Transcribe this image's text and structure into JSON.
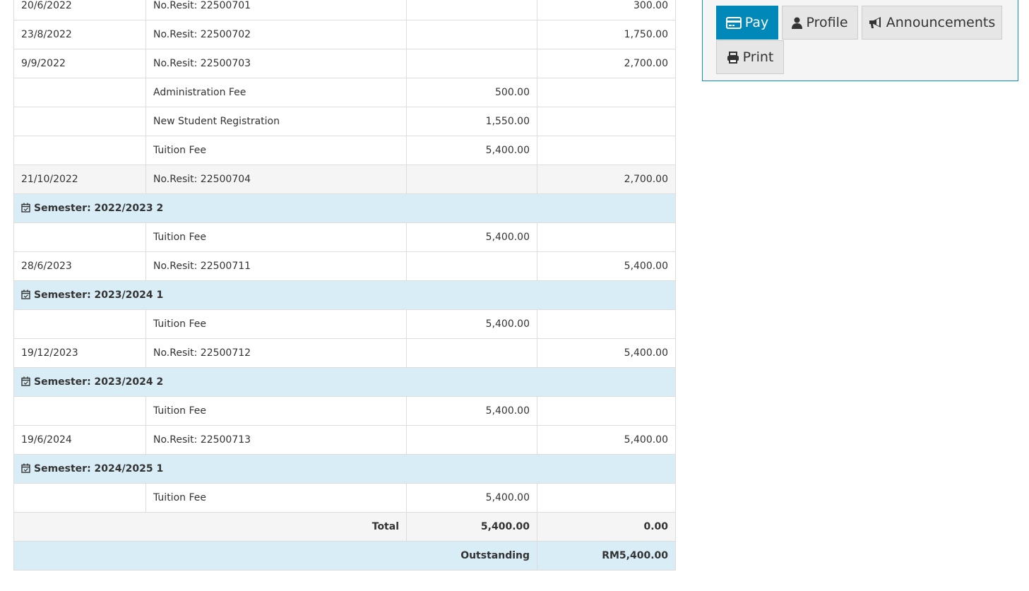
{
  "rows": [
    {
      "type": "row",
      "date": "20/6/2022",
      "desc": "No.Resit: 22500701",
      "debit": "",
      "credit": "300.00"
    },
    {
      "type": "row",
      "date": "23/8/2022",
      "desc": "No.Resit: 22500702",
      "debit": "",
      "credit": "1,750.00"
    },
    {
      "type": "row",
      "date": "9/9/2022",
      "desc": "No.Resit: 22500703",
      "debit": "",
      "credit": "2,700.00"
    },
    {
      "type": "row",
      "date": "",
      "desc": "Administration Fee",
      "debit": "500.00",
      "credit": ""
    },
    {
      "type": "row",
      "date": "",
      "desc": "New Student Registration",
      "debit": "1,550.00",
      "credit": ""
    },
    {
      "type": "row",
      "date": "",
      "desc": "Tuition Fee",
      "debit": "5,400.00",
      "credit": ""
    },
    {
      "type": "alt",
      "date": "21/10/2022",
      "desc": "No.Resit: 22500704",
      "debit": "",
      "credit": "2,700.00"
    },
    {
      "type": "sem",
      "label": "Semester: 2022/2023 2"
    },
    {
      "type": "row",
      "date": "",
      "desc": "Tuition Fee",
      "debit": "5,400.00",
      "credit": ""
    },
    {
      "type": "row",
      "date": "28/6/2023",
      "desc": "No.Resit: 22500711",
      "debit": "",
      "credit": "5,400.00"
    },
    {
      "type": "sem",
      "label": "Semester: 2023/2024 1"
    },
    {
      "type": "row",
      "date": "",
      "desc": "Tuition Fee",
      "debit": "5,400.00",
      "credit": ""
    },
    {
      "type": "row",
      "date": "19/12/2023",
      "desc": "No.Resit: 22500712",
      "debit": "",
      "credit": "5,400.00"
    },
    {
      "type": "sem",
      "label": "Semester: 2023/2024 2"
    },
    {
      "type": "row",
      "date": "",
      "desc": "Tuition Fee",
      "debit": "5,400.00",
      "credit": ""
    },
    {
      "type": "row",
      "date": "19/6/2024",
      "desc": "No.Resit: 22500713",
      "debit": "",
      "credit": "5,400.00"
    },
    {
      "type": "sem",
      "label": "Semester: 2024/2025 1"
    },
    {
      "type": "row",
      "date": "",
      "desc": "Tuition Fee",
      "debit": "5,400.00",
      "credit": ""
    }
  ],
  "total": {
    "label": "Total",
    "debit": "5,400.00",
    "credit": "0.00"
  },
  "outstanding": {
    "label": "Outstanding",
    "value": "RM5,400.00"
  },
  "actions": {
    "pay": "Pay",
    "profile": "Profile",
    "announcements": "Announcements",
    "print": "Print"
  },
  "colors": {
    "primary": "#0088b8",
    "semester_bg": "#d9edf7"
  }
}
